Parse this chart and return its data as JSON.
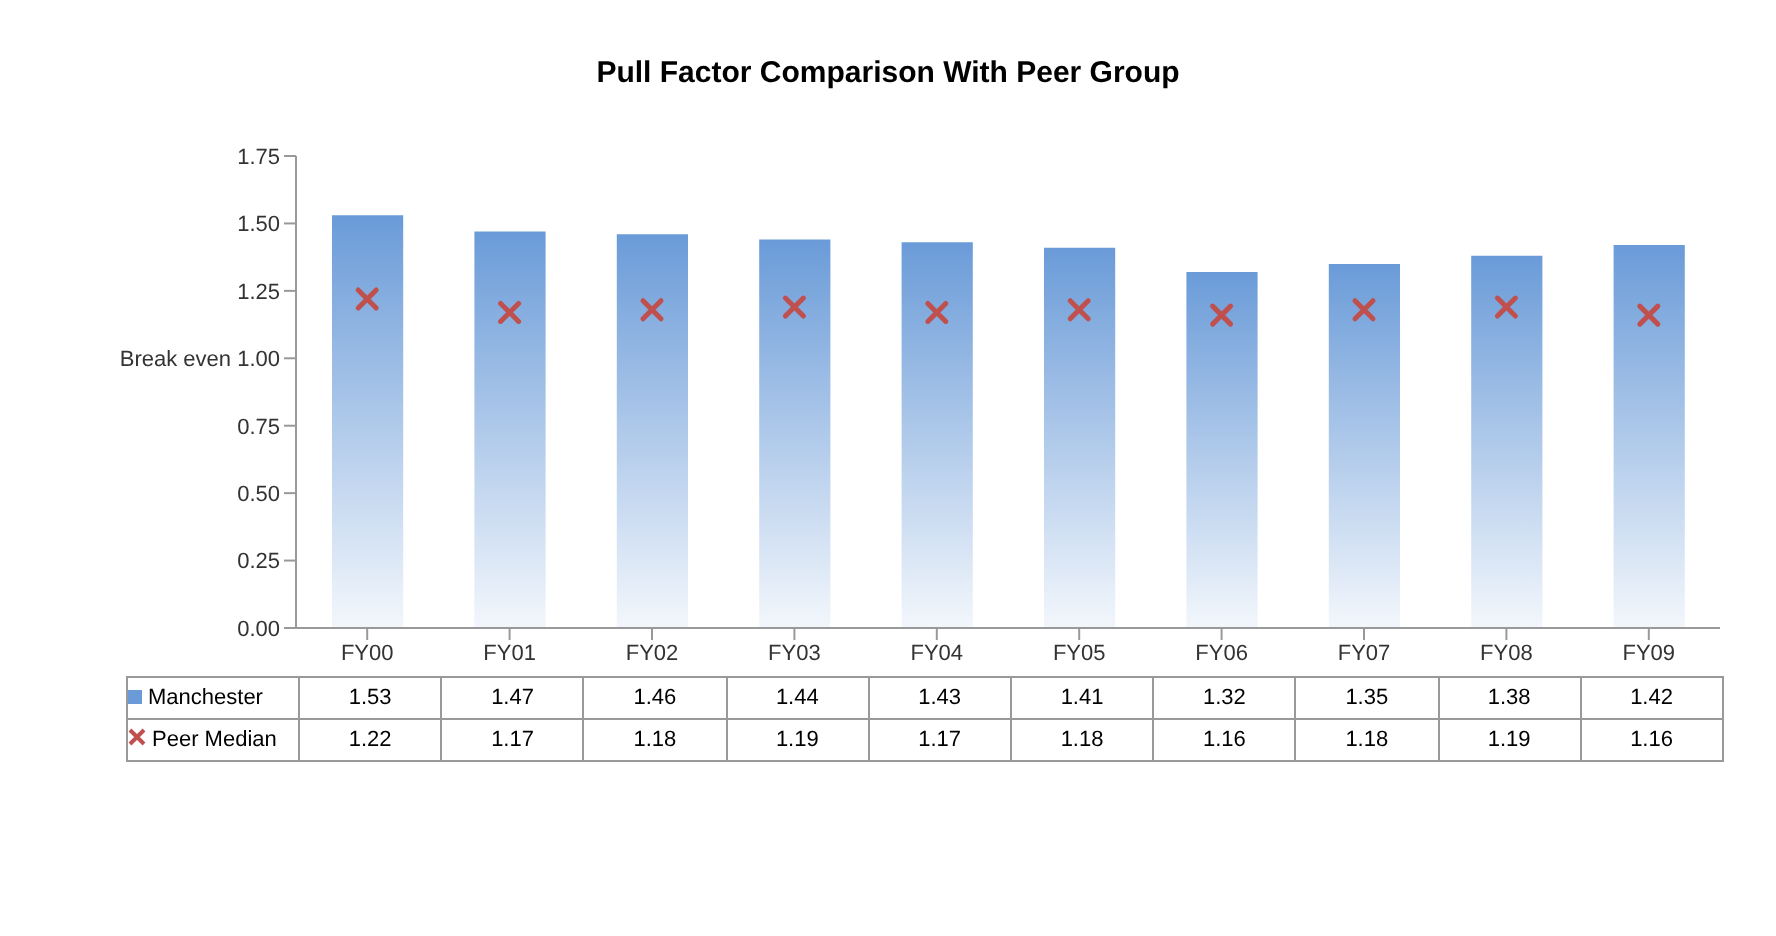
{
  "chart_data": {
    "type": "bar",
    "title": "Pull Factor Comparison  With Peer Group",
    "categories": [
      "FY00",
      "FY01",
      "FY02",
      "FY03",
      "FY04",
      "FY05",
      "FY06",
      "FY07",
      "FY08",
      "FY09"
    ],
    "series": [
      {
        "name": "Manchester",
        "color": "#6a9bd8",
        "values": [
          1.53,
          1.47,
          1.46,
          1.44,
          1.43,
          1.41,
          1.32,
          1.35,
          1.38,
          1.42
        ]
      },
      {
        "name": "Peer Median",
        "type": "scatter",
        "color": "#c0504d",
        "marker": "cross",
        "values": [
          1.22,
          1.17,
          1.18,
          1.19,
          1.17,
          1.18,
          1.16,
          1.18,
          1.19,
          1.16
        ]
      }
    ],
    "ylim": [
      0,
      1.75
    ],
    "yticks": [
      {
        "value": 0,
        "label": "0.00"
      },
      {
        "value": 0.25,
        "label": "0.25"
      },
      {
        "value": 0.5,
        "label": "0.50"
      },
      {
        "value": 0.75,
        "label": "0.75"
      },
      {
        "value": 1,
        "label": "Break even 1.00"
      },
      {
        "value": 1.25,
        "label": "1.25"
      },
      {
        "value": 1.5,
        "label": "1.50"
      },
      {
        "value": 1.75,
        "label": "1.75"
      }
    ],
    "data_labels": true,
    "legend": "bottom",
    "grid": false
  }
}
